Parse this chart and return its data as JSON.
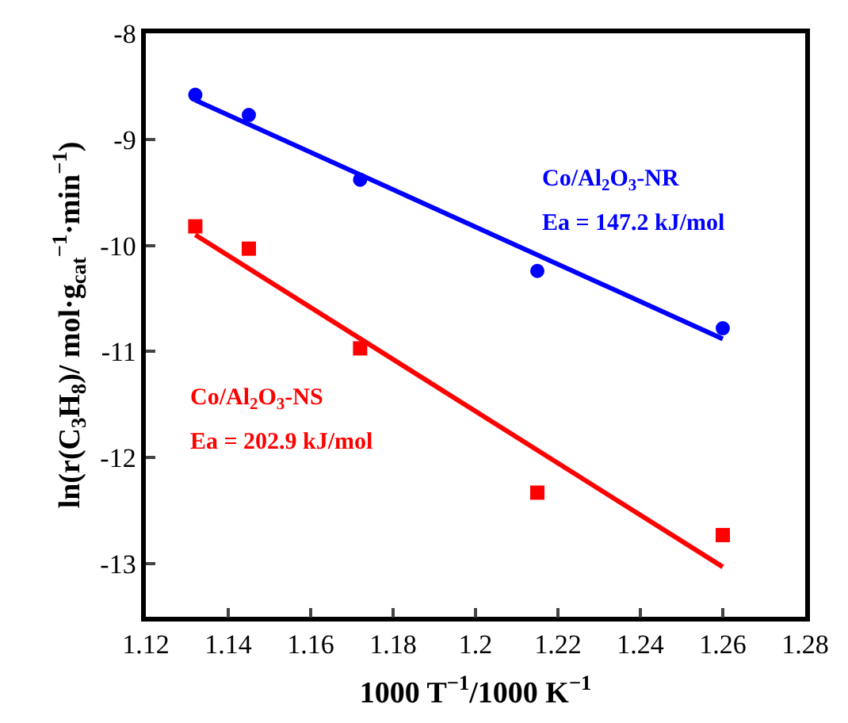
{
  "chart_data": {
    "type": "scatter",
    "xlabel": "1000 T$^{−1}$/1000 K$^{−1}$",
    "ylabel": "ln(r(C$_{3}$H$_{8}$)/ mol·g$_{cat}$$^{−1}$·min$^{−1}$)",
    "xlim": [
      1.12,
      1.28
    ],
    "xticks": [
      1.12,
      1.14,
      1.16,
      1.18,
      1.2,
      1.22,
      1.24,
      1.26,
      1.28
    ],
    "ylim": [
      -13.5,
      -8
    ],
    "yticks": [
      -13,
      -12,
      -11,
      -10,
      -9,
      -8
    ],
    "legend": false,
    "series": [
      {
        "name": "Co/Al$_{2}$O$_{3}$-NR",
        "marker": "circle",
        "color": "#0000ff",
        "x": [
          1.132,
          1.145,
          1.172,
          1.215,
          1.26
        ],
        "values": [
          -8.58,
          -8.77,
          -9.38,
          -10.24,
          -10.78
        ]
      },
      {
        "name": "Co/Al$_{2}$O$_{3}$-NS",
        "marker": "square",
        "color": "#ff0000",
        "x": [
          1.132,
          1.145,
          1.172,
          1.215,
          1.26
        ],
        "values": [
          -9.82,
          -10.03,
          -10.97,
          -12.33,
          -12.73
        ]
      },
      {
        "type": "line",
        "color": "#0000ff",
        "x": [
          1.132,
          1.26
        ],
        "values": [
          -8.63,
          -10.88
        ]
      },
      {
        "type": "line",
        "color": "#ff0000",
        "x": [
          1.132,
          1.26
        ],
        "values": [
          -9.9,
          -13.03
        ]
      }
    ],
    "annotations": [
      "Ea = 147.2 kJ/mol",
      "Ea = 202.9 kJ/mol"
    ]
  }
}
